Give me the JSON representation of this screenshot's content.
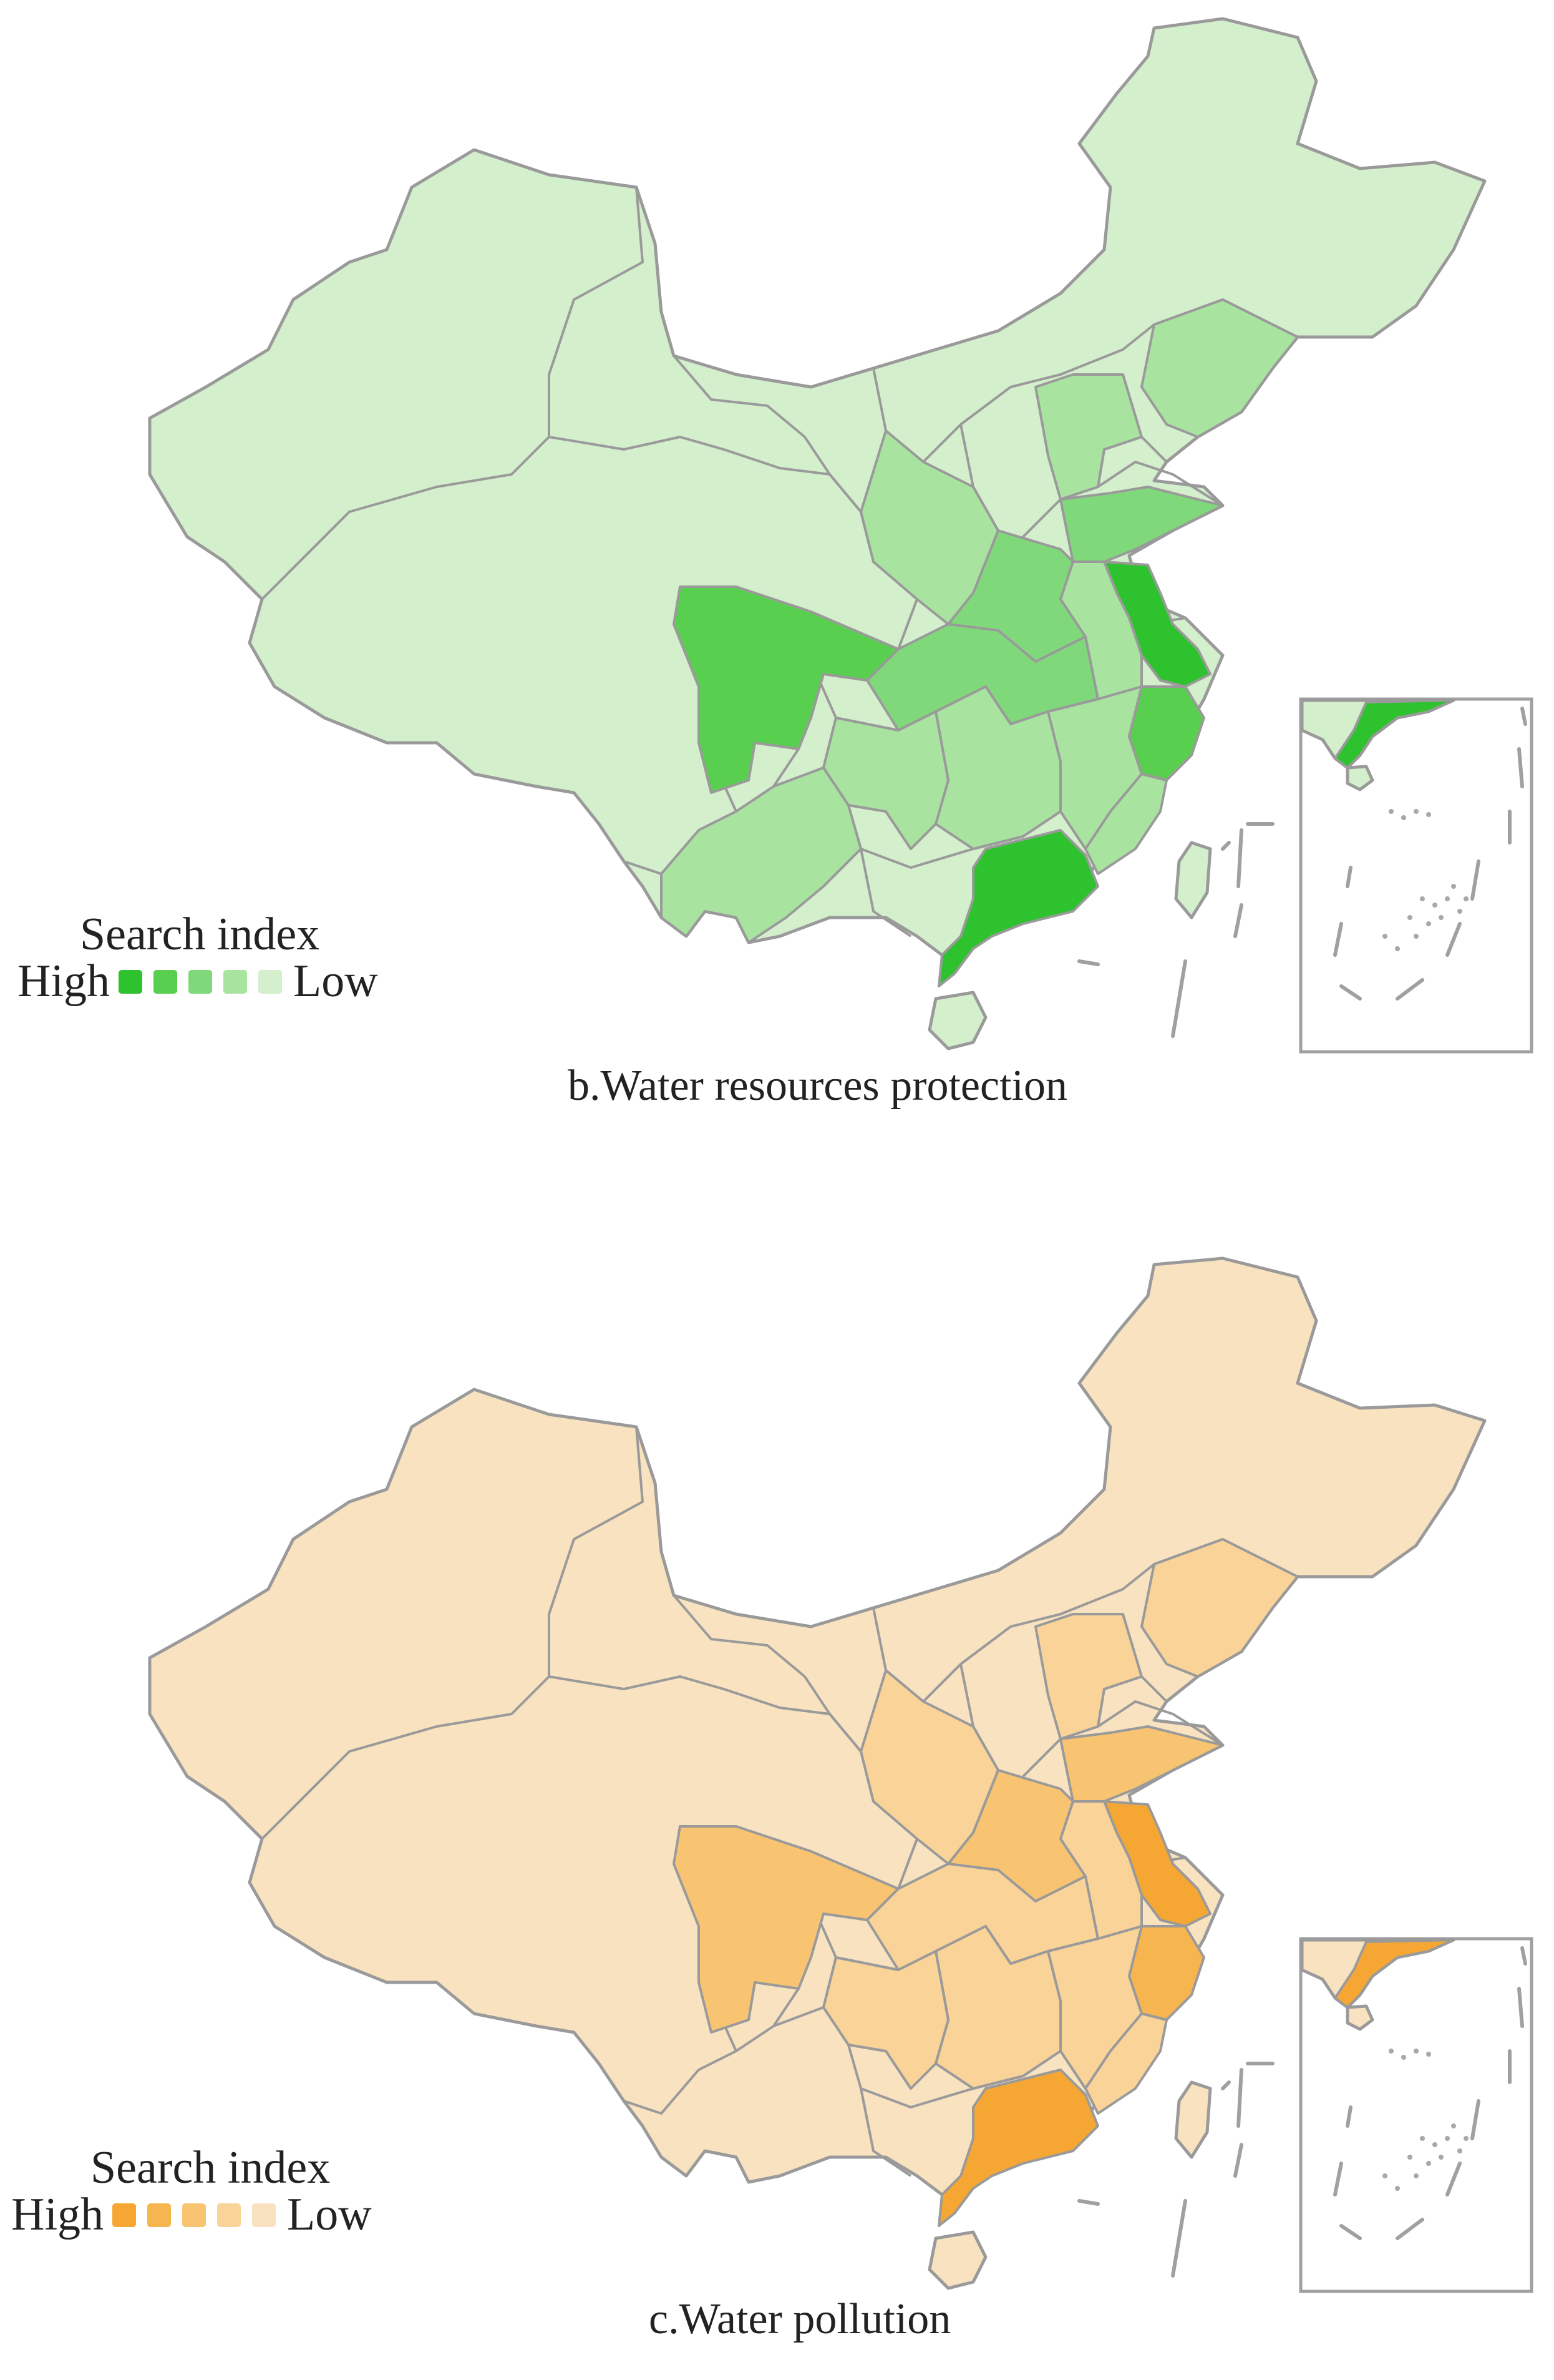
{
  "figures": [
    {
      "id": "b",
      "caption": "b.Water resources protection",
      "legend": {
        "title": "Search index",
        "high_label": "High",
        "low_label": "Low",
        "scale_colors": [
          "#2ec22e",
          "#59cf4f",
          "#7fd97a",
          "#a8e3a0",
          "#d4efcc"
        ]
      },
      "colors": {
        "base": "#d4efcc",
        "border": "#9a9a9a",
        "sea": "#ffffff"
      }
    },
    {
      "id": "c",
      "caption": "c.Water pollution",
      "legend": {
        "title": "Search index",
        "high_label": "High",
        "low_label": "Low",
        "scale_colors": [
          "#f6a733",
          "#f7b54f",
          "#f8c472",
          "#f9d397",
          "#f9e2c0"
        ]
      },
      "colors": {
        "base": "#f9e2c0",
        "border": "#9a9a9a",
        "sea": "#ffffff"
      }
    }
  ]
}
